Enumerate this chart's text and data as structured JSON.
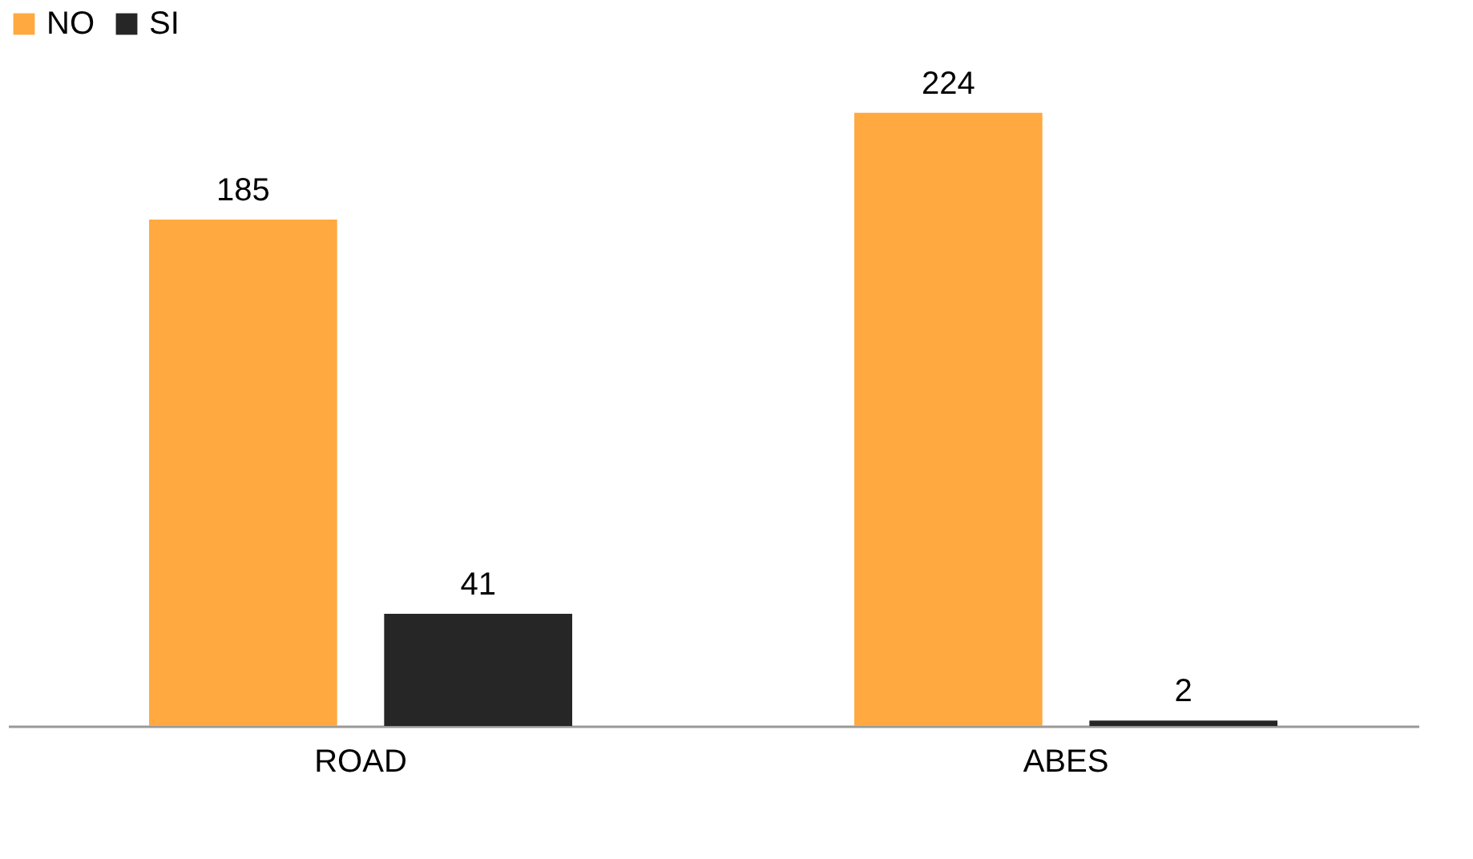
{
  "chart_data": {
    "type": "bar",
    "categories": [
      "ROAD",
      "ABES"
    ],
    "series": [
      {
        "name": "NO",
        "color": "#ffa940",
        "values": [
          185,
          224
        ]
      },
      {
        "name": "SI",
        "color": "#262626",
        "values": [
          41,
          2
        ]
      }
    ],
    "data_labels": true,
    "legend": "top",
    "grid": false
  }
}
